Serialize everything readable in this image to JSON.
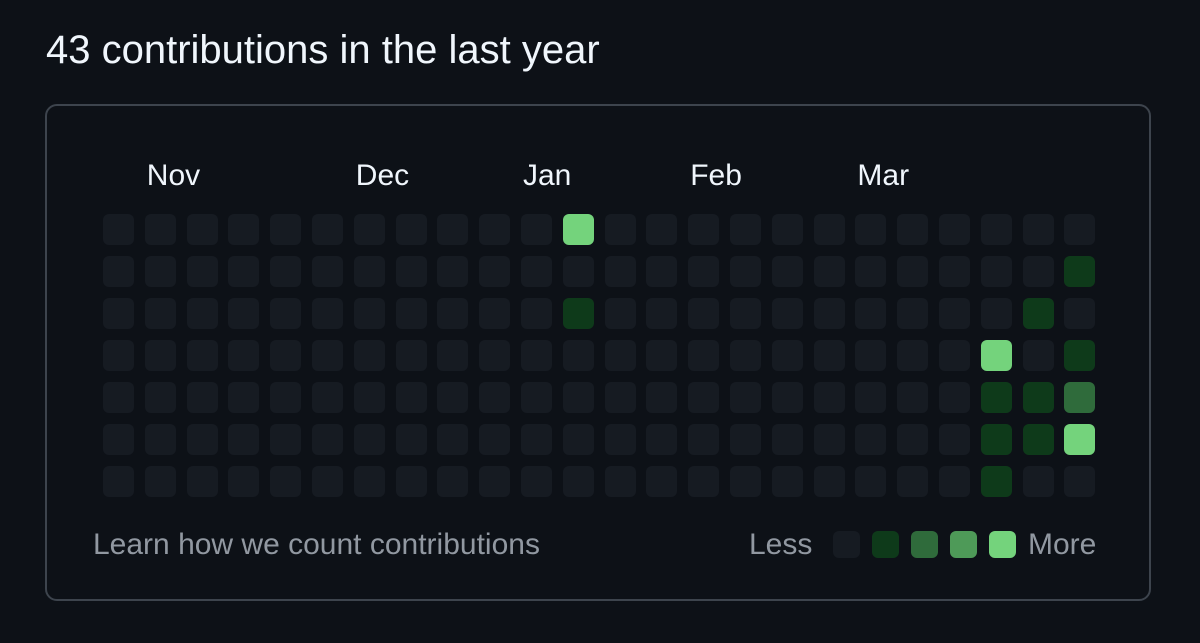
{
  "header": {
    "title": "43 contributions in the last year"
  },
  "graph": {
    "months": [
      {
        "label": "Nov",
        "week": 1
      },
      {
        "label": "Dec",
        "week": 6
      },
      {
        "label": "Jan",
        "week": 10
      },
      {
        "label": "Feb",
        "week": 14
      },
      {
        "label": "Mar",
        "week": 18
      }
    ],
    "weeks": 24,
    "days_per_week": 7,
    "levels": [
      [
        0,
        0,
        0,
        0,
        0,
        0,
        0
      ],
      [
        0,
        0,
        0,
        0,
        0,
        0,
        0
      ],
      [
        0,
        0,
        0,
        0,
        0,
        0,
        0
      ],
      [
        0,
        0,
        0,
        0,
        0,
        0,
        0
      ],
      [
        0,
        0,
        0,
        0,
        0,
        0,
        0
      ],
      [
        0,
        0,
        0,
        0,
        0,
        0,
        0
      ],
      [
        0,
        0,
        0,
        0,
        0,
        0,
        0
      ],
      [
        0,
        0,
        0,
        0,
        0,
        0,
        0
      ],
      [
        0,
        0,
        0,
        0,
        0,
        0,
        0
      ],
      [
        0,
        0,
        0,
        0,
        0,
        0,
        0
      ],
      [
        0,
        0,
        0,
        0,
        0,
        0,
        0
      ],
      [
        4,
        0,
        1,
        0,
        0,
        0,
        0
      ],
      [
        0,
        0,
        0,
        0,
        0,
        0,
        0
      ],
      [
        0,
        0,
        0,
        0,
        0,
        0,
        0
      ],
      [
        0,
        0,
        0,
        0,
        0,
        0,
        0
      ],
      [
        0,
        0,
        0,
        0,
        0,
        0,
        0
      ],
      [
        0,
        0,
        0,
        0,
        0,
        0,
        0
      ],
      [
        0,
        0,
        0,
        0,
        0,
        0,
        0
      ],
      [
        0,
        0,
        0,
        0,
        0,
        0,
        0
      ],
      [
        0,
        0,
        0,
        0,
        0,
        0,
        0
      ],
      [
        0,
        0,
        0,
        0,
        0,
        0,
        0
      ],
      [
        0,
        0,
        0,
        4,
        1,
        1,
        1
      ],
      [
        0,
        0,
        1,
        0,
        1,
        1,
        0
      ],
      [
        0,
        1,
        0,
        1,
        2,
        4,
        0
      ]
    ],
    "level_colors": [
      "#161b22",
      "#0e3a1a",
      "#2f6b3b",
      "#4e9a58",
      "#74d37c"
    ]
  },
  "footer": {
    "learn_link": "Learn how we count contributions",
    "legend_less": "Less",
    "legend_more": "More"
  }
}
